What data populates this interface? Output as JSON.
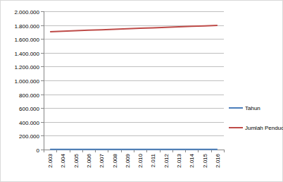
{
  "chart_data": {
    "type": "line",
    "categories": [
      "2.003",
      "2.004",
      "2.005",
      "2.006",
      "2.007",
      "2.008",
      "2.009",
      "2.010",
      "2.011",
      "2.012",
      "2.013",
      "2.014",
      "2.015",
      "2.016"
    ],
    "series": [
      {
        "name": "Tahun",
        "color": "#4a7ebb",
        "values": [
          2003,
          2004,
          2005,
          2006,
          2007,
          2008,
          2009,
          2010,
          2011,
          2012,
          2013,
          2014,
          2015,
          2016
        ]
      },
      {
        "name": "Jumlah Penduduk",
        "color": "#be4b48",
        "values": [
          1705000,
          1712000,
          1719000,
          1726000,
          1733000,
          1740000,
          1747000,
          1754000,
          1761000,
          1768000,
          1775000,
          1782000,
          1789000,
          1796000
        ]
      }
    ],
    "ylim": [
      0,
      2000000
    ],
    "yticks": [
      0,
      {
        "value": 200000,
        "label": "200.000"
      },
      {
        "value": 400000,
        "label": "400.000"
      },
      {
        "value": 600000,
        "label": "600.000"
      },
      {
        "value": 800000,
        "label": "800.000"
      },
      {
        "value": 1000000,
        "label": "1.000.000"
      },
      {
        "value": 1200000,
        "label": "1.200.000"
      },
      {
        "value": 1400000,
        "label": "1.400.000"
      },
      {
        "value": 1600000,
        "label": "1.600.000"
      },
      {
        "value": 1800000,
        "label": "1.800.000"
      },
      {
        "value": 2000000,
        "label": "2.000.000"
      }
    ],
    "grid": true,
    "legend": "right"
  }
}
